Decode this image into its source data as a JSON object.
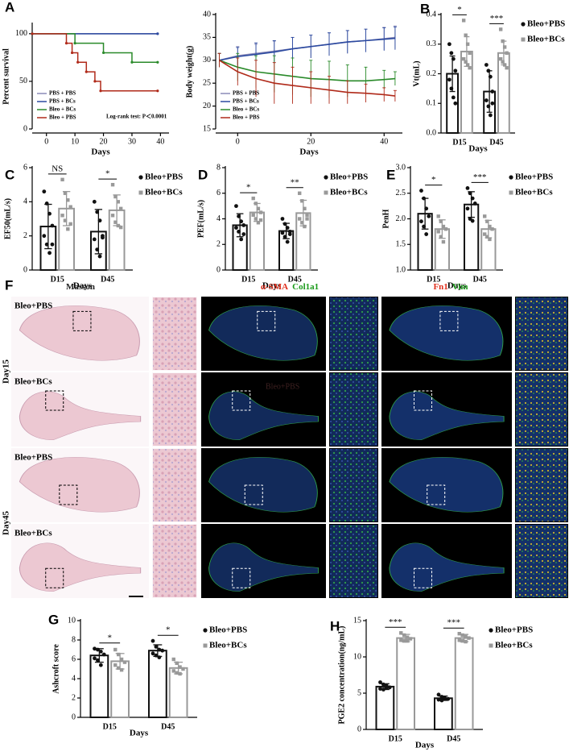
{
  "chart_data": [
    {
      "type": "step",
      "panel": "A",
      "ylabel": "Percent survival",
      "xlabel": "Days",
      "xlim": [
        -5,
        43
      ],
      "xticks": [
        0,
        10,
        20,
        30,
        40
      ],
      "ylim": [
        0,
        110
      ],
      "yticks": [
        0,
        50,
        100
      ],
      "annotation": "Log-rank test: P＜0.0001",
      "legend": "lower left",
      "series": [
        {
          "name": "PBS + PBS",
          "color": "#8a8ab8",
          "x": [
            -5,
            39
          ],
          "values": [
            100,
            100
          ]
        },
        {
          "name": "PBS + BCs",
          "color": "#2c4aa0",
          "x": [
            -5,
            39
          ],
          "values": [
            100,
            100
          ]
        },
        {
          "name": "Bleo + BCs",
          "color": "#2a8a2a",
          "x": [
            -5,
            10,
            20,
            30,
            39
          ],
          "values": [
            100,
            90,
            80,
            70,
            70
          ]
        },
        {
          "name": "Bleo + PBS",
          "color": "#b02a1a",
          "x": [
            -5,
            7,
            9,
            11,
            14,
            17,
            19,
            39
          ],
          "values": [
            100,
            90,
            80,
            70,
            60,
            50,
            40,
            40
          ]
        }
      ]
    },
    {
      "type": "line",
      "ylabel": "Body weight(g)",
      "xlabel": "Days",
      "xlim": [
        -6,
        45
      ],
      "xticks": [
        0,
        20,
        40
      ],
      "ylim": [
        15,
        40
      ],
      "yticks": [
        15,
        20,
        25,
        30,
        35,
        40
      ],
      "legend": "lower left",
      "x": [
        -5,
        0,
        5,
        10,
        15,
        20,
        25,
        30,
        35,
        40,
        43
      ],
      "series": [
        {
          "name": "PBS + PBS",
          "color": "#8a8ab8",
          "values": [
            30,
            31,
            31.5,
            32,
            32.5,
            33,
            33.5,
            34,
            34.3,
            34.7,
            35
          ],
          "errors": [
            1.5,
            2,
            2,
            2.2,
            2.5,
            2.5,
            2.5,
            2.5,
            2.5,
            2.5,
            2.5
          ]
        },
        {
          "name": "PBS + BCs",
          "color": "#2c4aa0",
          "values": [
            30,
            30.8,
            31.3,
            31.8,
            32.5,
            33,
            33.5,
            34,
            34.3,
            34.6,
            34.8
          ],
          "errors": [
            1.5,
            2,
            2.5,
            2.5,
            2.5,
            2.5,
            2.5,
            2.5,
            2.5,
            2.5,
            2.5
          ]
        },
        {
          "name": "Bleo + BCs",
          "color": "#2a8a2a",
          "values": [
            30,
            28.5,
            27.5,
            27,
            26.5,
            26,
            25.8,
            25.5,
            25.5,
            25.8,
            26
          ],
          "errors": [
            1.5,
            3,
            3.5,
            4,
            4,
            4,
            4,
            3.5,
            3,
            2,
            1.5
          ]
        },
        {
          "name": "Bleo + PBS",
          "color": "#b02a1a",
          "values": [
            30,
            27.5,
            26,
            25,
            24.5,
            24,
            23.5,
            23,
            22.8,
            22.5,
            22.2
          ],
          "errors": [
            1.5,
            3,
            4,
            4.5,
            4,
            3.5,
            3,
            2.5,
            2,
            1.5,
            1.2
          ]
        }
      ]
    },
    {
      "type": "bar",
      "panel": "B",
      "ylabel": "Vt(mL)",
      "xlabel": "Days",
      "categories": [
        "D15",
        "D45"
      ],
      "ylim": [
        0,
        0.4
      ],
      "yticks": [
        {
          "value": 0,
          "label": "0.0"
        },
        0.1,
        0.2,
        0.3,
        0.4
      ],
      "significance": [
        "*",
        "***"
      ],
      "series": [
        {
          "name": "Bleo+PBS",
          "color": "#111111",
          "marker": "circle",
          "values": [
            0.2,
            0.14
          ],
          "errors": [
            0.06,
            0.07
          ],
          "points": [
            [
              0.3,
              0.27,
              0.25,
              0.21,
              0.18,
              0.15,
              0.12,
              0.1
            ],
            [
              0.23,
              0.21,
              0.19,
              0.14,
              0.11,
              0.09,
              0.06,
              0.1
            ]
          ]
        },
        {
          "name": "Bleo+BCs",
          "color": "#999999",
          "marker": "square",
          "values": [
            0.275,
            0.27
          ],
          "errors": [
            0.05,
            0.04
          ],
          "points": [
            [
              0.38,
              0.33,
              0.3,
              0.27,
              0.25,
              0.24,
              0.23,
              0.22
            ],
            [
              0.35,
              0.31,
              0.29,
              0.27,
              0.25,
              0.24,
              0.23,
              0.22
            ]
          ]
        }
      ]
    },
    {
      "type": "bar",
      "panel": "C",
      "ylabel": "EF50(mL/s)",
      "xlabel": "Days",
      "categories": [
        "D15",
        "D45"
      ],
      "ylim": [
        0,
        6
      ],
      "yticks": [
        0,
        2,
        4,
        6
      ],
      "significance": [
        "NS",
        "*"
      ],
      "series": [
        {
          "name": "Bleo+PBS",
          "color": "#111111",
          "marker": "circle",
          "values": [
            2.55,
            2.25
          ],
          "errors": [
            1.3,
            1.3
          ],
          "points": [
            [
              4.6,
              3.9,
              3.3,
              2.6,
              2.0,
              1.5,
              1.0,
              1.5
            ],
            [
              4.0,
              3.4,
              2.9,
              2.0,
              1.8,
              1.2,
              0.8,
              1.9
            ]
          ]
        },
        {
          "name": "Bleo+BCs",
          "color": "#999999",
          "marker": "square",
          "values": [
            3.6,
            3.5
          ],
          "errors": [
            1.0,
            0.9
          ],
          "points": [
            [
              5.3,
              4.5,
              4.1,
              3.7,
              3.2,
              2.9,
              2.4,
              2.7
            ],
            [
              5.0,
              4.3,
              4.0,
              3.6,
              3.2,
              2.8,
              2.6,
              2.5
            ]
          ]
        }
      ]
    },
    {
      "type": "bar",
      "panel": "D",
      "ylabel": "PEF(mL/s)",
      "xlabel": "Days",
      "categories": [
        "D15",
        "D45"
      ],
      "ylim": [
        0,
        8
      ],
      "yticks": [
        0,
        2,
        4,
        6,
        8
      ],
      "significance": [
        "*",
        "**"
      ],
      "series": [
        {
          "name": "Bleo+PBS",
          "color": "#111111",
          "marker": "circle",
          "values": [
            3.5,
            3.05
          ],
          "errors": [
            0.9,
            0.6
          ],
          "points": [
            [
              5.0,
              4.2,
              3.8,
              3.5,
              3.3,
              3.0,
              2.4,
              2.8
            ],
            [
              4.0,
              3.6,
              3.3,
              3.0,
              2.9,
              2.6,
              2.2,
              2.8
            ]
          ]
        },
        {
          "name": "Bleo+BCs",
          "color": "#999999",
          "marker": "square",
          "values": [
            4.5,
            4.45
          ],
          "errors": [
            0.7,
            1.0
          ],
          "points": [
            [
              5.6,
              5.2,
              4.8,
              4.5,
              4.3,
              4.0,
              3.7,
              3.9
            ],
            [
              6.0,
              5.4,
              4.8,
              4.3,
              4.0,
              3.7,
              3.4,
              4.0
            ]
          ]
        }
      ]
    },
    {
      "type": "bar",
      "panel": "E",
      "ylabel": "PenH",
      "xlabel": "Days",
      "categories": [
        "D15",
        "D45"
      ],
      "ylim": [
        1,
        3
      ],
      "yticks": [
        {
          "value": 1,
          "label": "1.0"
        },
        1.5,
        {
          "value": 2,
          "label": "2.0"
        },
        2.5,
        {
          "value": 3,
          "label": "3.0"
        }
      ],
      "significance": [
        "*",
        "***"
      ],
      "series": [
        {
          "name": "Bleo+PBS",
          "color": "#111111",
          "marker": "circle",
          "values": [
            2.1,
            2.28
          ],
          "errors": [
            0.3,
            0.25
          ],
          "points": [
            [
              2.55,
              2.4,
              2.2,
              2.05,
              1.95,
              1.85,
              1.7
            ],
            [
              2.6,
              2.5,
              2.4,
              2.3,
              2.2,
              2.0,
              1.96
            ]
          ]
        },
        {
          "name": "Bleo+BCs",
          "color": "#999999",
          "marker": "square",
          "values": [
            1.8,
            1.8
          ],
          "errors": [
            0.18,
            0.17
          ],
          "points": [
            [
              2.05,
              1.95,
              1.85,
              1.8,
              1.75,
              1.65,
              1.55
            ],
            [
              2.05,
              1.95,
              1.85,
              1.8,
              1.7,
              1.65,
              1.6
            ]
          ]
        }
      ]
    },
    {
      "type": "bar",
      "panel": "G",
      "ylabel": "Ashcroft score",
      "xlabel": "Days",
      "categories": [
        "D15",
        "D45"
      ],
      "ylim": [
        0,
        10
      ],
      "yticks": [
        0,
        2,
        4,
        6,
        8,
        10
      ],
      "significance": [
        "*",
        "*"
      ],
      "series": [
        {
          "name": "Bleo+PBS",
          "color": "#111111",
          "marker": "circle",
          "values": [
            6.4,
            6.9
          ],
          "errors": [
            0.7,
            0.6
          ],
          "points": [
            [
              7.1,
              7.0,
              6.8,
              6.5,
              6.1,
              5.9,
              5.4
            ],
            [
              7.9,
              7.3,
              7.0,
              6.9,
              6.6,
              6.4,
              6.2
            ]
          ]
        },
        {
          "name": "Bleo+BCs",
          "color": "#999999",
          "marker": "square",
          "values": [
            5.8,
            5.1
          ],
          "errors": [
            0.8,
            0.6
          ],
          "points": [
            [
              7.0,
              6.5,
              6.0,
              5.7,
              5.4,
              5.1,
              4.9
            ],
            [
              6.0,
              5.6,
              5.2,
              5.0,
              4.8,
              4.6,
              4.5
            ]
          ]
        }
      ]
    },
    {
      "type": "bar",
      "panel": "H",
      "ylabel": "PGE2 concentration(ng/mL)",
      "xlabel": "Days",
      "categories": [
        "D15",
        "D45"
      ],
      "ylim": [
        0,
        15
      ],
      "yticks": [
        0,
        5,
        10,
        15
      ],
      "significance": [
        "***",
        "***"
      ],
      "series": [
        {
          "name": "Bleo+PBS",
          "color": "#111111",
          "marker": "circle",
          "values": [
            5.9,
            4.3
          ],
          "errors": [
            0.4,
            0.3
          ],
          "points": [
            [
              6.5,
              6.2,
              6.0,
              5.8,
              5.6,
              5.5,
              5.7
            ],
            [
              4.8,
              4.5,
              4.3,
              4.2,
              4.1,
              4.0,
              4.2
            ]
          ]
        },
        {
          "name": "Bleo+BCs",
          "color": "#999999",
          "marker": "square",
          "values": [
            12.6,
            12.6
          ],
          "errors": [
            0.5,
            0.5
          ],
          "points": [
            [
              13.3,
              13.0,
              12.7,
              12.5,
              12.3,
              12.2,
              12.2
            ],
            [
              13.2,
              13.0,
              12.8,
              12.6,
              12.3,
              12.2,
              12.1
            ]
          ]
        }
      ]
    }
  ],
  "figure_panel": {
    "label": "F",
    "headers": [
      [
        {
          "text": "Masson",
          "color": "#222222"
        }
      ],
      [
        {
          "text": "α-SMA",
          "color": "#e0301e"
        },
        {
          "text": "Col1a1",
          "color": "#1a9a1a"
        }
      ],
      [
        {
          "text": "Fn1",
          "color": "#e0301e"
        },
        {
          "text": "Vim",
          "color": "#1a9a1a"
        }
      ]
    ],
    "days": [
      "Day15",
      "Day45"
    ],
    "rows": [
      "Bleo+PBS",
      "Bleo+BCs",
      "Bleo+PBS",
      "Bleo+BCs"
    ],
    "overlay_text": "Bleo+PBS"
  }
}
